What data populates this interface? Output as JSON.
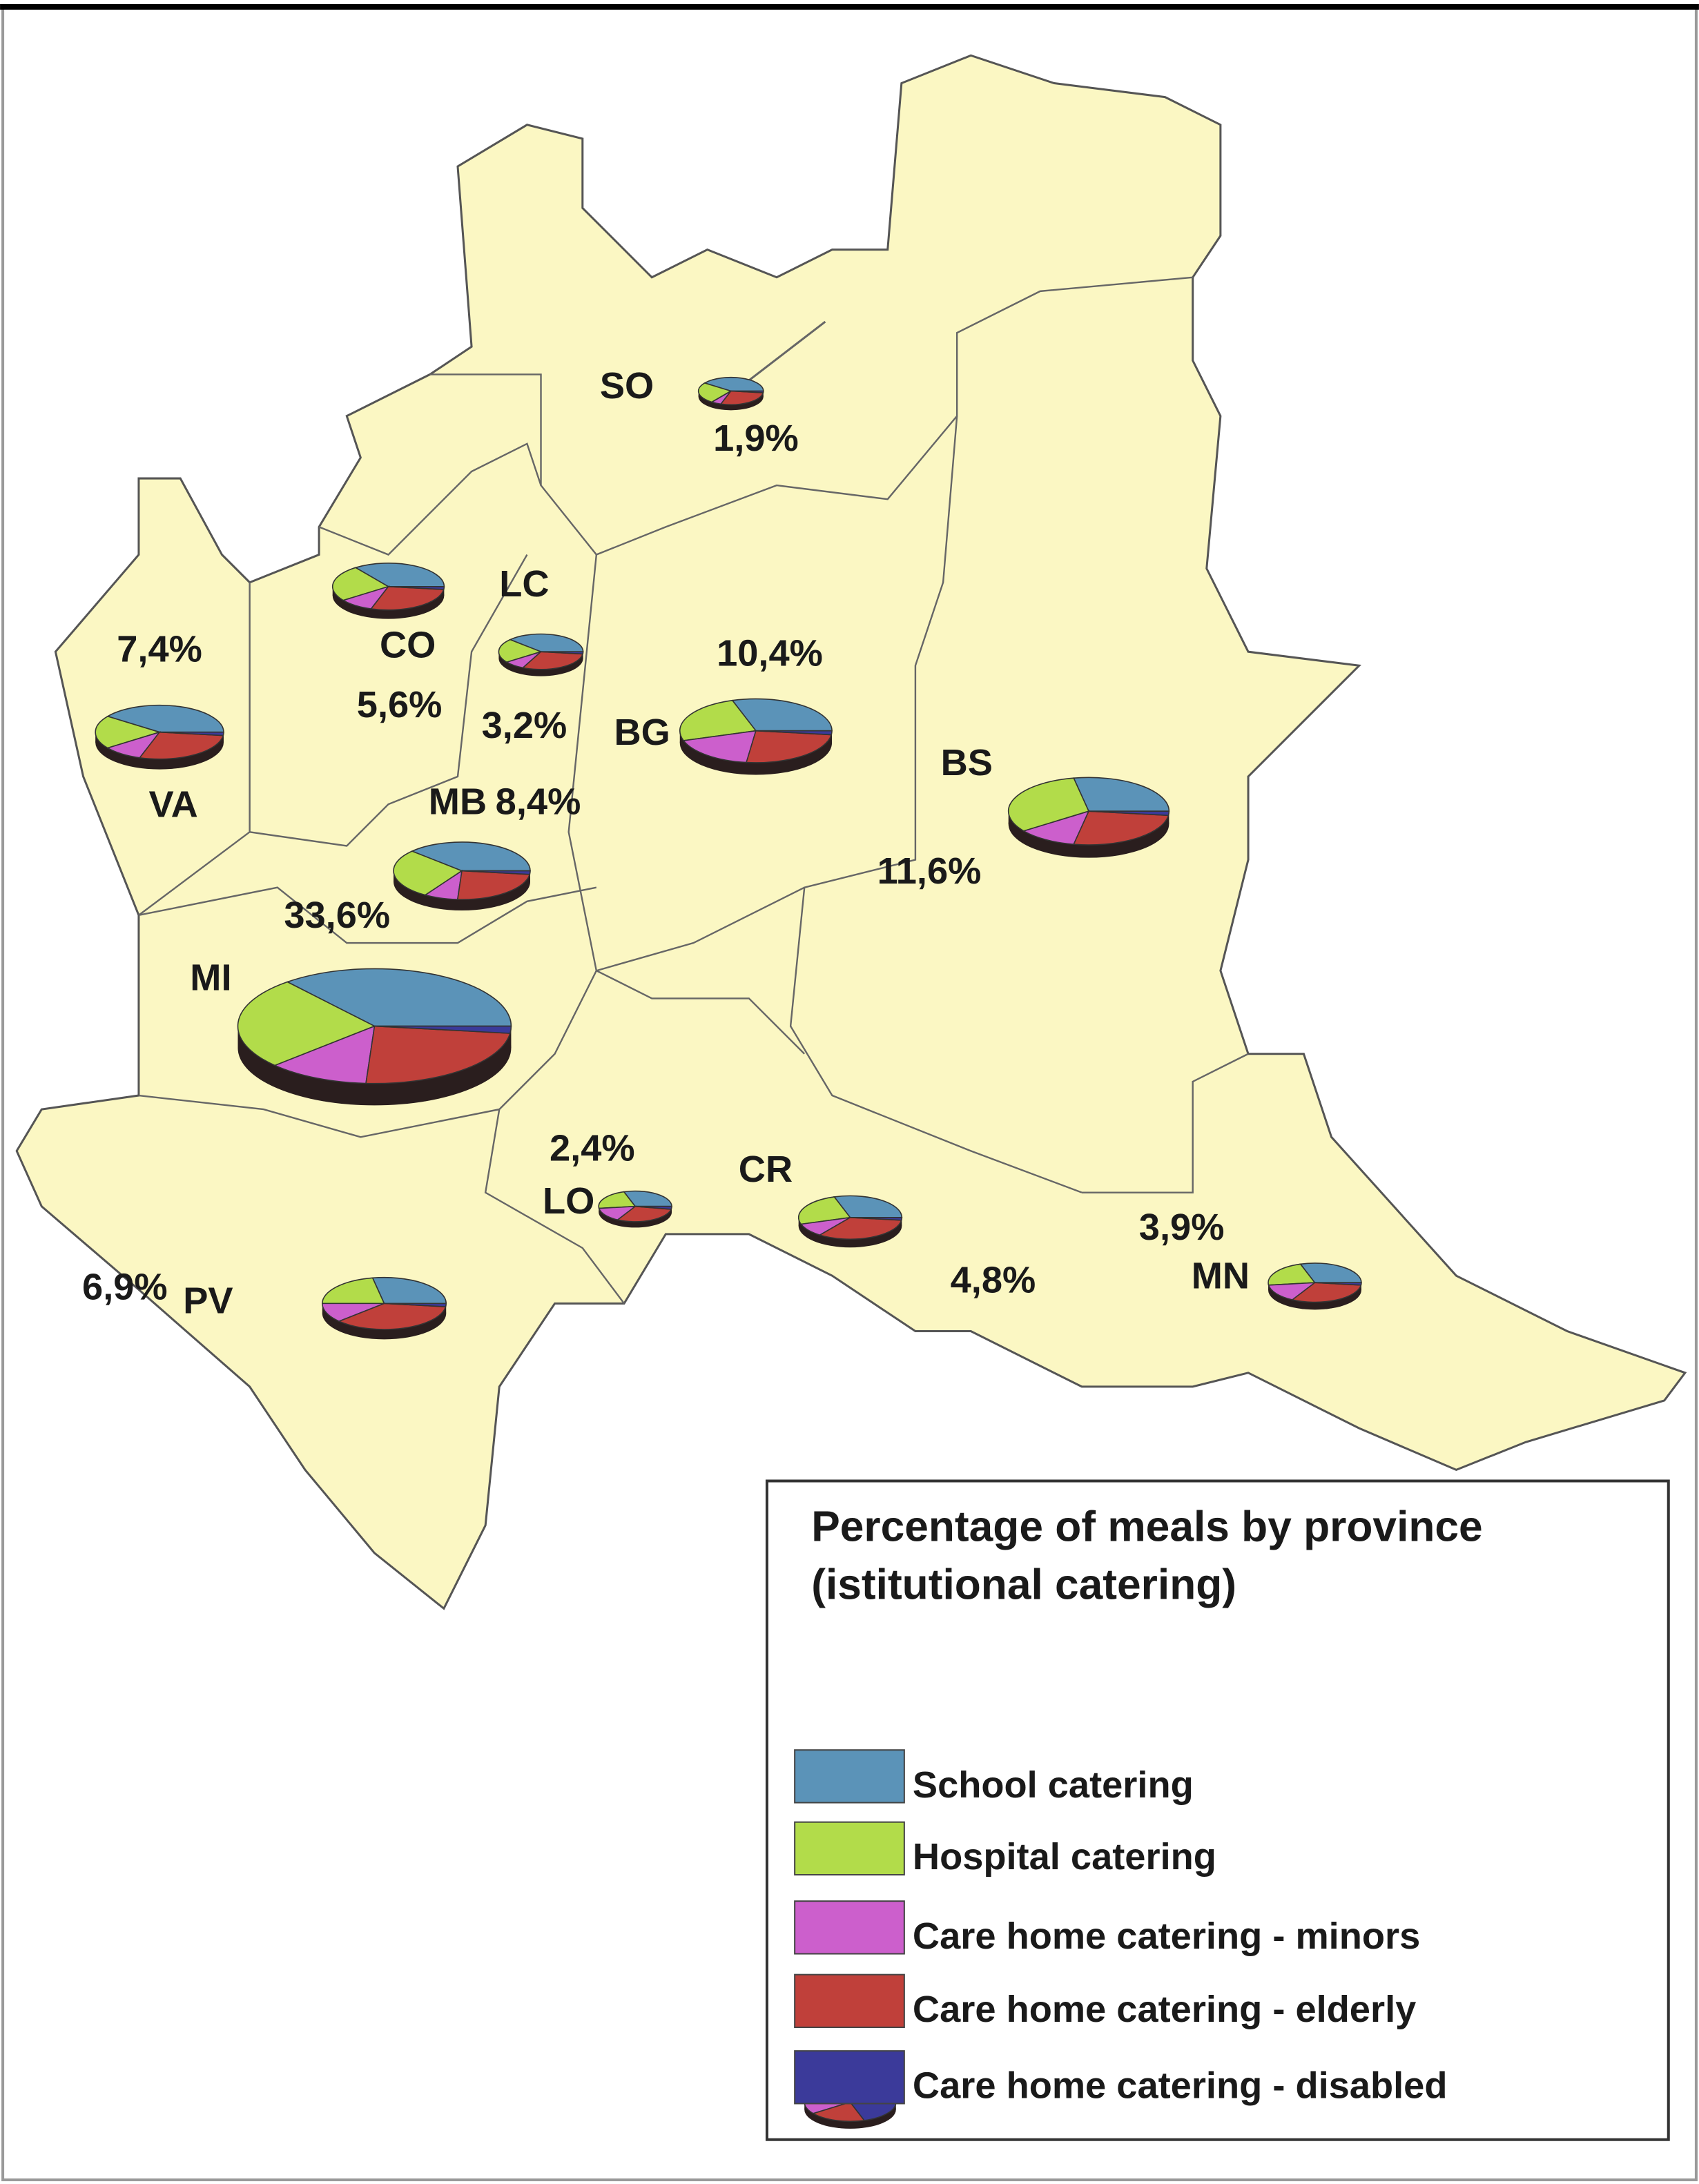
{
  "legend": {
    "title": [
      "Percentage of meals by province",
      "(istitutional catering)"
    ],
    "categories": [
      {
        "name": "School catering",
        "color": "#5b93b8"
      },
      {
        "name": "Hospital catering",
        "color": "#b2dc4a"
      },
      {
        "name": "Care home catering - minors",
        "color": "#cc5fcc"
      },
      {
        "name": "Care home catering - elderly",
        "color": "#c0403a"
      },
      {
        "name": "Care home catering - disabled",
        "color": "#3b3a9a"
      }
    ]
  },
  "provinces": [
    {
      "name": "SO",
      "share": 1.9,
      "share_label": "1,9%",
      "slices": [
        40,
        25,
        5,
        28,
        2
      ]
    },
    {
      "name": "CO",
      "share": 5.6,
      "share_label": "5,6%",
      "slices": [
        35,
        25,
        10,
        28,
        2
      ]
    },
    {
      "name": "LC",
      "share": 3.2,
      "share_label": "3,2%",
      "slices": [
        38,
        22,
        8,
        30,
        2
      ]
    },
    {
      "name": "VA",
      "share": 7.4,
      "share_label": "7,4%",
      "slices": [
        40,
        20,
        10,
        28,
        2
      ]
    },
    {
      "name": "BG",
      "share": 10.4,
      "share_label": "10,4%",
      "slices": [
        30,
        25,
        18,
        25,
        2
      ]
    },
    {
      "name": "BS",
      "share": 11.6,
      "share_label": "11,6%",
      "slices": [
        28,
        32,
        12,
        26,
        2
      ]
    },
    {
      "name": "MB",
      "share": 8.4,
      "share_label": "8,4%",
      "slices": [
        38,
        28,
        8,
        24,
        2
      ]
    },
    {
      "name": "MI",
      "share": 33.6,
      "share_label": "33,6%",
      "slices": [
        36,
        26,
        12,
        24,
        2
      ]
    },
    {
      "name": "LO",
      "share": 2.4,
      "share_label": "2,4%",
      "slices": [
        30,
        22,
        15,
        30,
        3
      ]
    },
    {
      "name": "CR",
      "share": 4.8,
      "share_label": "4,8%",
      "slices": [
        30,
        25,
        10,
        33,
        2
      ]
    },
    {
      "name": "PV",
      "share": 6.9,
      "share_label": "6,9%",
      "slices": [
        28,
        22,
        12,
        36,
        2
      ]
    },
    {
      "name": "MN",
      "share": 3.9,
      "share_label": "3,9%",
      "slices": [
        30,
        22,
        15,
        31,
        2
      ]
    }
  ]
}
